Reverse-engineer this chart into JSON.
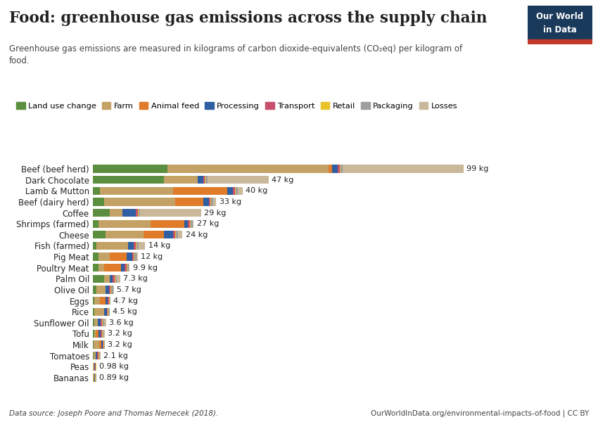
{
  "title": "Food: greenhouse gas emissions across the supply chain",
  "subtitle": "Greenhouse gas emissions are measured in kilograms of carbon dioxide-equivalents (CO₂eq) per kilogram of\nfood.",
  "categories": [
    "Beef (beef herd)",
    "Dark Chocolate",
    "Lamb & Mutton",
    "Beef (dairy herd)",
    "Coffee",
    "Shrimps (farmed)",
    "Cheese",
    "Fish (farmed)",
    "Pig Meat",
    "Poultry Meat",
    "Palm Oil",
    "Olive Oil",
    "Eggs",
    "Rice",
    "Sunflower Oil",
    "Tofu",
    "Milk",
    "Tomatoes",
    "Peas",
    "Bananas"
  ],
  "totals_str": [
    "99 kg",
    "47 kg",
    "40 kg",
    "33 kg",
    "29 kg",
    "27 kg",
    "24 kg",
    "14 kg",
    "12 kg",
    "9.9 kg",
    "7.3 kg",
    "5.7 kg",
    "4.7 kg",
    "4.5 kg",
    "3.6 kg",
    "3.2 kg",
    "3.2 kg",
    "2.1 kg",
    "0.98 kg",
    "0.89 kg"
  ],
  "legend_labels": [
    "Land use change",
    "Farm",
    "Animal feed",
    "Processing",
    "Transport",
    "Retail",
    "Packaging",
    "Losses"
  ],
  "colors": [
    "#5b8f3f",
    "#c4a265",
    "#e07b2a",
    "#2e5fa3",
    "#c94f6d",
    "#e8c42a",
    "#9e9e9e",
    "#c9b89a"
  ],
  "data": [
    [
      20.0,
      43.0,
      1.0,
      1.5,
      0.5,
      0.2,
      0.5,
      32.3
    ],
    [
      19.0,
      9.0,
      0.0,
      1.5,
      0.5,
      0.2,
      0.5,
      16.3
    ],
    [
      2.0,
      19.5,
      14.5,
      1.5,
      0.5,
      0.2,
      0.5,
      1.3
    ],
    [
      3.0,
      19.0,
      7.5,
      1.5,
      0.5,
      0.2,
      0.5,
      0.8
    ],
    [
      4.5,
      3.5,
      0.0,
      3.5,
      0.5,
      0.2,
      0.5,
      16.3
    ],
    [
      1.5,
      14.0,
      9.0,
      1.0,
      0.5,
      0.2,
      0.5,
      0.3
    ],
    [
      3.5,
      10.0,
      5.5,
      2.5,
      0.5,
      0.2,
      0.5,
      1.3
    ],
    [
      1.0,
      8.5,
      0.0,
      1.5,
      0.5,
      0.2,
      0.5,
      1.8
    ],
    [
      1.5,
      3.0,
      4.5,
      1.5,
      0.5,
      0.2,
      0.5,
      0.3
    ],
    [
      1.5,
      1.5,
      4.5,
      1.0,
      0.5,
      0.2,
      0.5,
      0.2
    ],
    [
      3.0,
      1.5,
      0.0,
      0.8,
      0.5,
      0.2,
      0.5,
      0.8
    ],
    [
      1.0,
      2.5,
      0.0,
      0.8,
      0.5,
      0.2,
      0.5,
      0.2
    ],
    [
      0.5,
      1.5,
      1.5,
      0.5,
      0.3,
      0.2,
      0.2,
      0.0
    ],
    [
      0.5,
      2.5,
      0.0,
      0.8,
      0.2,
      0.2,
      0.3,
      0.0
    ],
    [
      0.5,
      0.8,
      0.0,
      0.8,
      0.3,
      0.2,
      0.5,
      0.5
    ],
    [
      0.5,
      0.3,
      0.8,
      0.6,
      0.3,
      0.2,
      0.2,
      0.3
    ],
    [
      0.3,
      1.5,
      0.5,
      0.3,
      0.3,
      0.1,
      0.2,
      0.0
    ],
    [
      0.3,
      0.5,
      0.0,
      0.4,
      0.4,
      0.2,
      0.2,
      0.1
    ],
    [
      0.1,
      0.4,
      0.0,
      0.2,
      0.1,
      0.1,
      0.1,
      0.0
    ],
    [
      0.1,
      0.4,
      0.0,
      0.1,
      0.1,
      0.1,
      0.1,
      0.0
    ]
  ],
  "bg_color": "#ffffff",
  "text_color": "#222222",
  "footer_left": "Data source: Joseph Poore and Thomas Nemecek (2018).",
  "footer_right": "OurWorldInData.org/environmental-impacts-of-food | CC BY",
  "logo_bg": "#1a3a5c",
  "logo_red": "#c0392b",
  "logo_text1": "Our World",
  "logo_text2": "in Data"
}
